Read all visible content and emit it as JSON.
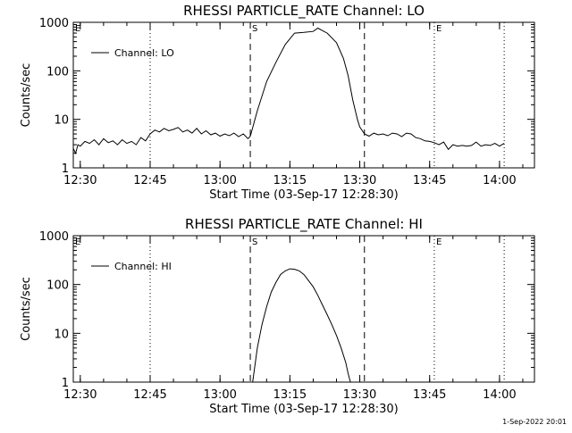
{
  "footer": {
    "timestamp": "1-Sep-2022 20:01"
  },
  "chart_data": [
    {
      "type": "line",
      "title": "RHESSI PARTICLE_RATE Channel: LO",
      "xlabel": "Start Time (03-Sep-17 12:28:30)",
      "ylabel": "Counts/sec",
      "yscale": "log",
      "ylim": [
        1,
        1000
      ],
      "xlim": [
        "12:28:30",
        "14:07:30"
      ],
      "x_tick_labels": [
        "12:30",
        "12:45",
        "13:00",
        "13:15",
        "13:30",
        "13:45",
        "14:00"
      ],
      "y_tick_labels": [
        "1",
        "10",
        "100",
        "1000"
      ],
      "legend": {
        "position": "top-left",
        "entries": [
          "Channel: LO"
        ]
      },
      "markers": [
        {
          "label": "E",
          "time": "12:28:30",
          "style": "dotted"
        },
        {
          "label": "",
          "time": "12:45:00",
          "style": "dotted"
        },
        {
          "label": "S",
          "time": "13:06:30",
          "style": "dashed"
        },
        {
          "label": "",
          "time": "13:31:00",
          "style": "dashed"
        },
        {
          "label": "E",
          "time": "13:46:00",
          "style": "dotted"
        },
        {
          "label": "",
          "time": "14:01:00",
          "style": "dotted"
        }
      ],
      "series": [
        {
          "name": "Channel: LO",
          "x": [
            "12:28:30",
            "12:29:00",
            "12:29:30",
            "12:30:00",
            "12:31:00",
            "12:32:00",
            "12:33:00",
            "12:34:00",
            "12:35:00",
            "12:36:00",
            "12:37:00",
            "12:38:00",
            "12:39:00",
            "12:40:00",
            "12:41:00",
            "12:42:00",
            "12:43:00",
            "12:44:00",
            "12:45:00",
            "12:46:00",
            "12:47:00",
            "12:48:00",
            "12:49:00",
            "12:50:00",
            "12:51:00",
            "12:52:00",
            "12:53:00",
            "12:54:00",
            "12:55:00",
            "12:56:00",
            "12:57:00",
            "12:58:00",
            "12:59:00",
            "13:00:00",
            "13:01:00",
            "13:02:00",
            "13:03:00",
            "13:04:00",
            "13:05:00",
            "13:06:00",
            "13:06:30",
            "13:08:00",
            "13:10:00",
            "13:12:00",
            "13:14:00",
            "13:16:00",
            "13:18:00",
            "13:20:00",
            "13:21:00",
            "13:23:00",
            "13:25:00",
            "13:26:30",
            "13:27:30",
            "13:28:30",
            "13:29:30",
            "13:30:00",
            "13:31:00",
            "13:32:00",
            "13:33:00",
            "13:34:00",
            "13:35:00",
            "13:36:00",
            "13:37:00",
            "13:38:00",
            "13:39:00",
            "13:40:00",
            "13:41:00",
            "13:42:00",
            "13:43:00",
            "13:44:00",
            "13:45:00",
            "13:46:00",
            "13:47:00",
            "13:48:00",
            "13:49:00",
            "13:50:00",
            "13:51:00",
            "13:52:00",
            "13:53:00",
            "13:54:00",
            "13:55:00",
            "13:56:00",
            "13:57:00",
            "13:58:00",
            "13:59:00",
            "14:00:00",
            "14:01:00"
          ],
          "y": [
            2.5,
            2.0,
            3.0,
            2.8,
            3.5,
            3.2,
            3.8,
            3.0,
            4.0,
            3.3,
            3.6,
            3.0,
            3.8,
            3.2,
            3.5,
            3.0,
            4.2,
            3.6,
            5.0,
            6.0,
            5.5,
            6.5,
            5.8,
            6.2,
            6.8,
            5.5,
            6.0,
            5.2,
            6.5,
            5.0,
            5.8,
            4.8,
            5.2,
            4.5,
            5.0,
            4.6,
            5.2,
            4.4,
            5.0,
            4.0,
            4.5,
            15,
            60,
            150,
            350,
            600,
            620,
            650,
            760,
            600,
            380,
            180,
            80,
            25,
            10,
            7,
            5.0,
            4.5,
            5.2,
            4.8,
            5.0,
            4.6,
            5.2,
            5.0,
            4.4,
            5.2,
            5.0,
            4.2,
            4.0,
            3.6,
            3.5,
            3.3,
            3.0,
            3.4,
            2.4,
            3.0,
            2.8,
            2.9,
            2.8,
            2.9,
            3.4,
            2.8,
            3.0,
            2.9,
            3.2,
            2.8,
            3.2
          ]
        }
      ]
    },
    {
      "type": "line",
      "title": "RHESSI PARTICLE_RATE Channel: HI",
      "xlabel": "Start Time (03-Sep-17 12:28:30)",
      "ylabel": "Counts/sec",
      "yscale": "log",
      "ylim": [
        1,
        1000
      ],
      "xlim": [
        "12:28:30",
        "14:07:30"
      ],
      "x_tick_labels": [
        "12:30",
        "12:45",
        "13:00",
        "13:15",
        "13:30",
        "13:45",
        "14:00"
      ],
      "y_tick_labels": [
        "1",
        "10",
        "100",
        "1000"
      ],
      "legend": {
        "position": "top-left",
        "entries": [
          "Channel: HI"
        ]
      },
      "markers": [
        {
          "label": "E",
          "time": "12:28:30",
          "style": "dotted"
        },
        {
          "label": "",
          "time": "12:45:00",
          "style": "dotted"
        },
        {
          "label": "S",
          "time": "13:06:30",
          "style": "dashed"
        },
        {
          "label": "",
          "time": "13:31:00",
          "style": "dashed"
        },
        {
          "label": "E",
          "time": "13:46:00",
          "style": "dotted"
        },
        {
          "label": "",
          "time": "14:01:00",
          "style": "dotted"
        }
      ],
      "series": [
        {
          "name": "Channel: HI",
          "x": [
            "13:07:00",
            "13:08:00",
            "13:09:00",
            "13:10:00",
            "13:11:00",
            "13:12:00",
            "13:13:00",
            "13:14:00",
            "13:15:00",
            "13:16:00",
            "13:17:00",
            "13:18:00",
            "13:19:00",
            "13:20:00",
            "13:21:00",
            "13:22:00",
            "13:23:00",
            "13:24:00",
            "13:25:00",
            "13:26:00",
            "13:27:00",
            "13:27:30",
            "13:28:00"
          ],
          "y": [
            1.0,
            5,
            15,
            35,
            70,
            110,
            160,
            190,
            210,
            205,
            190,
            160,
            120,
            90,
            60,
            38,
            24,
            15,
            9,
            5,
            2.5,
            1.5,
            1.0
          ]
        }
      ]
    }
  ]
}
